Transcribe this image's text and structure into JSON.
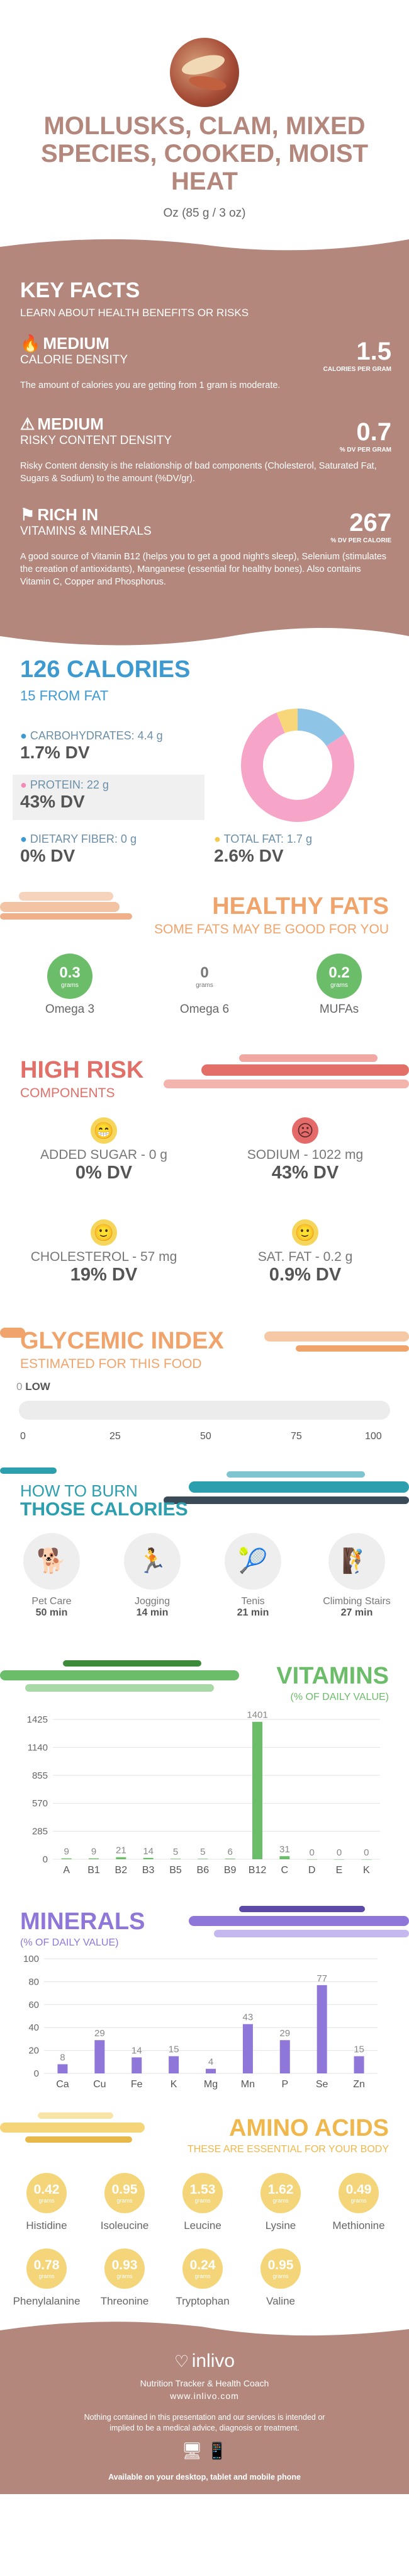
{
  "header": {
    "title_lines": [
      "MOLLUSKS, CLAM, MIXED",
      "SPECIES, COOKED, MOIST",
      "HEAT"
    ],
    "serving": "Oz (85 g / 3 oz)"
  },
  "key_facts": {
    "title": "KEY FACTS",
    "subtitle": "LEARN ABOUT HEALTH BENEFITS OR RISKS",
    "items": [
      {
        "level": "MEDIUM",
        "name": "CALORIE DENSITY",
        "value": "1.5",
        "unit": "CALORIES PER GRAM",
        "desc": "The amount of calories you are getting from 1 gram is moderate.",
        "icon": "flame-icon"
      },
      {
        "level": "MEDIUM",
        "name": "RISKY CONTENT DENSITY",
        "value": "0.7",
        "unit": "% DV PER GRAM",
        "desc": "Risky Content density is the relationship of bad components (Cholesterol, Saturated Fat, Sugars & Sodium) to the amount (%DV/gr).",
        "icon": "warning-icon"
      },
      {
        "level": "RICH  IN",
        "name": "VITAMINS & MINERALS",
        "value": "267",
        "unit": "% DV PER CALORIE",
        "desc": "A good source of Vitamin B12 (helps you to get a good night's sleep), Selenium (stimulates the creation of antioxidants), Manganese (essential for healthy bones). Also contains Vitamin C, Copper and Phosphorus.",
        "icon": "flag-icon"
      }
    ]
  },
  "calories": {
    "title": "126 CALORIES",
    "from_fat": "15 FROM FAT",
    "carbs_label": "CARBOHYDRATES: 4.4 g",
    "carbs_dv": "1.7% DV",
    "protein_label": "PROTEIN: 22 g",
    "protein_dv": "43% DV",
    "fiber_label": "DIETARY FIBER: 0 g",
    "fiber_dv": "0% DV",
    "fat_label": "TOTAL FAT: 1.7 g",
    "fat_dv": "2.6% DV",
    "donut": [
      {
        "name": "carbs",
        "value": 4.4,
        "color": "#8ec5e6"
      },
      {
        "name": "protein",
        "value": 22,
        "color": "#f6a5c9"
      },
      {
        "name": "fat",
        "value": 1.7,
        "color": "#f7d77a"
      }
    ]
  },
  "healthy_fats": {
    "title": "HEALTHY FATS",
    "subtitle": "SOME FATS MAY BE GOOD FOR YOU",
    "items": [
      {
        "value": "0.3",
        "unit": "grams",
        "label": "Omega 3",
        "color": "#6cbd6a"
      },
      {
        "value": "0",
        "unit": "grams",
        "label": "Omega 6",
        "color": "#ffffff"
      },
      {
        "value": "0.2",
        "unit": "grams",
        "label": "MUFAs",
        "color": "#6cbd6a"
      }
    ]
  },
  "high_risk": {
    "title": "HIGH RISK",
    "subtitle": "COMPONENTS",
    "items": [
      {
        "label": "ADDED SUGAR - 0 g",
        "dv": "0% DV",
        "face": "😁",
        "color": "#f6d65a"
      },
      {
        "label": "SODIUM - 1022 mg",
        "dv": "43% DV",
        "face": "☹",
        "color": "#e56b6b"
      },
      {
        "label": "CHOLESTEROL - 57 mg",
        "dv": "19% DV",
        "face": "🙂",
        "color": "#f6d65a"
      },
      {
        "label": "SAT. FAT - 0.2 g",
        "dv": "0.9% DV",
        "face": "🙂",
        "color": "#f6d65a"
      }
    ]
  },
  "glycemic": {
    "title": "GLYCEMIC INDEX",
    "subtitle": "ESTIMATED FOR THIS FOOD",
    "value": "0",
    "level": "LOW",
    "ticks": [
      "0",
      "25",
      "50",
      "75",
      "100"
    ]
  },
  "burn": {
    "title1": "HOW TO BURN",
    "title2": "THOSE CALORIES",
    "items": [
      {
        "label": "Pet Care",
        "time": "50 min",
        "icon": "dog-walk-icon"
      },
      {
        "label": "Jogging",
        "time": "14 min",
        "icon": "jogging-icon"
      },
      {
        "label": "Tenis",
        "time": "21 min",
        "icon": "tennis-icon"
      },
      {
        "label": "Climbing Stairs",
        "time": "27 min",
        "icon": "stairs-icon"
      }
    ]
  },
  "vitamins": {
    "title": "VITAMINS",
    "subtitle": "(% OF DAILY VALUE)"
  },
  "minerals": {
    "title": "MINERALS",
    "subtitle": "(% OF DAILY VALUE)"
  },
  "chart_data": [
    {
      "type": "bar",
      "categories": [
        "A",
        "B1",
        "B2",
        "B3",
        "B5",
        "B6",
        "B9",
        "B12",
        "C",
        "D",
        "E",
        "K"
      ],
      "values": [
        9,
        9,
        21,
        14,
        5,
        5,
        6,
        1401,
        31,
        0,
        0,
        0
      ],
      "data_labels": [
        "9",
        "9",
        "21",
        "14",
        "5",
        "5",
        "6",
        "1401",
        "31",
        "0",
        "0",
        "0"
      ],
      "yticks": [
        0,
        285,
        570,
        855,
        1140,
        1425
      ],
      "ylim": [
        0,
        1425
      ],
      "color": "#6cbd6a"
    },
    {
      "type": "bar",
      "categories": [
        "Ca",
        "Cu",
        "Fe",
        "K",
        "Mg",
        "Mn",
        "P",
        "Se",
        "Zn"
      ],
      "values": [
        8,
        29,
        14,
        15,
        4,
        43,
        29,
        77,
        15
      ],
      "data_labels": [
        "8",
        "29",
        "14",
        "15",
        "4",
        "43",
        "29",
        "77",
        "15"
      ],
      "yticks": [
        0,
        20,
        40,
        60,
        80,
        100
      ],
      "ylim": [
        0,
        100
      ],
      "color": "#8f77d9"
    }
  ],
  "amino": {
    "title": "AMINO ACIDS",
    "subtitle": "THESE ARE ESSENTIAL FOR YOUR BODY",
    "unit": "grams",
    "items": [
      {
        "value": "0.42",
        "label": "Histidine"
      },
      {
        "value": "0.95",
        "label": "Isoleucine"
      },
      {
        "value": "1.53",
        "label": "Leucine"
      },
      {
        "value": "1.62",
        "label": "Lysine"
      },
      {
        "value": "0.49",
        "label": "Methionine"
      },
      {
        "value": "0.78",
        "label": "Phenylalanine"
      },
      {
        "value": "0.93",
        "label": "Threonine"
      },
      {
        "value": "0.24",
        "label": "Tryptophan"
      },
      {
        "value": "0.95",
        "label": "Valine"
      }
    ]
  },
  "footer": {
    "brand": "inlivo",
    "tagline": "Nutrition Tracker & Health Coach",
    "url": "www.inlivo.com",
    "disclaimer": "Nothing contained in this presentation and our services is intended or implied to be a medical advice, diagnosis or treatment.",
    "devices": "Available on your desktop, tablet and mobile phone"
  },
  "colors": {
    "brown": "#b4877d",
    "dark_brown": "#9a6b62",
    "blue": "#3d9ad1",
    "orange": "#f0a46b",
    "red": "#e27069",
    "teal": "#2c9faf",
    "green": "#6cbd6a",
    "purple": "#8f77d9",
    "yellow": "#f4d57a"
  }
}
